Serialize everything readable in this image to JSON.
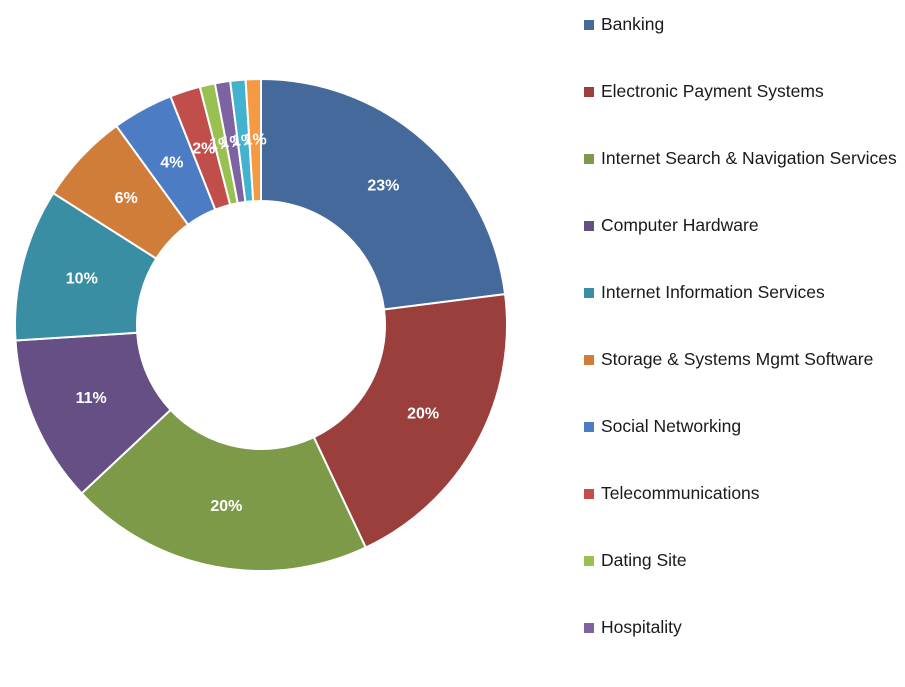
{
  "chart_data": {
    "type": "donut",
    "title": "",
    "slices": [
      {
        "label": "Banking",
        "value": 23,
        "display": "23%",
        "color": "#44699a"
      },
      {
        "label": "Electronic Payment Systems",
        "value": 20,
        "display": "20%",
        "color": "#9b3f3d"
      },
      {
        "label": "Internet Search & Navigation Services",
        "value": 20,
        "display": "20%",
        "color": "#7d9a48"
      },
      {
        "label": "Computer Hardware",
        "value": 11,
        "display": "11%",
        "color": "#654f85"
      },
      {
        "label": "Internet Information Services",
        "value": 10,
        "display": "10%",
        "color": "#3a8ea3"
      },
      {
        "label": "Storage & Systems Mgmt Software",
        "value": 6,
        "display": "6%",
        "color": "#d17d3a"
      },
      {
        "label": "Social Networking",
        "value": 4,
        "display": "4%",
        "color": "#4b7cc4"
      },
      {
        "label": "Telecommunications",
        "value": 2,
        "display": "2%",
        "color": "#c24e4b"
      },
      {
        "label": "Dating Site",
        "value": 1,
        "display": "1%",
        "color": "#99c151"
      },
      {
        "label": "Hospitality",
        "value": 1,
        "display": "1%",
        "color": "#7e63a3"
      },
      {
        "label": "",
        "value": 1,
        "display": "1%",
        "color": "#43b2cf"
      },
      {
        "label": "",
        "value": 1,
        "display": "1%",
        "color": "#f59a43"
      }
    ],
    "legend_position": "right"
  }
}
